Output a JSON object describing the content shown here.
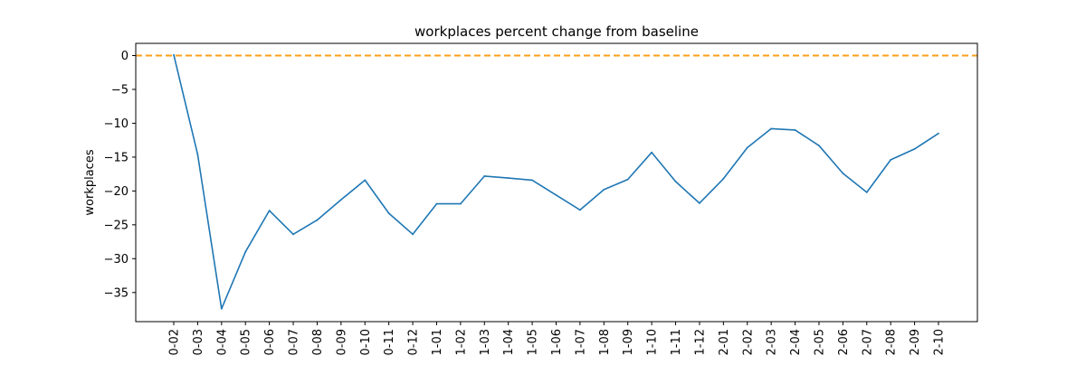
{
  "chart_data": {
    "type": "line",
    "title": "workplaces percent change from baseline",
    "xlabel": "",
    "ylabel": "workplaces",
    "categories": [
      "0-02",
      "0-03",
      "0-04",
      "0-05",
      "0-06",
      "0-07",
      "0-08",
      "0-09",
      "0-10",
      "0-11",
      "0-12",
      "1-01",
      "1-02",
      "1-03",
      "1-04",
      "1-05",
      "1-06",
      "1-07",
      "1-08",
      "1-09",
      "1-10",
      "1-11",
      "1-12",
      "2-01",
      "2-02",
      "2-03",
      "2-04",
      "2-05",
      "2-06",
      "2-07",
      "2-08",
      "2-09",
      "2-10"
    ],
    "series": [
      {
        "name": "",
        "color": "#1f77b4",
        "values": [
          0.1,
          -14.6,
          -37.4,
          -29.0,
          -22.9,
          -26.4,
          -24.3,
          -21.3,
          -18.4,
          -23.3,
          -26.4,
          -21.9,
          -21.9,
          -17.8,
          -18.1,
          -18.4,
          -20.6,
          -22.8,
          -19.8,
          -18.3,
          -14.3,
          -18.6,
          -21.8,
          -18.2,
          -13.6,
          -10.8,
          -11.0,
          -13.3,
          -17.4,
          -20.2,
          -15.4,
          -13.8,
          -11.5
        ]
      }
    ],
    "reference_line": {
      "y": 0,
      "color": "#ff9f1a",
      "style": "dashed"
    },
    "yticks": [
      0,
      -5,
      -10,
      -15,
      -20,
      -25,
      -30,
      -35
    ],
    "ylim": [
      -39.3,
      1.8
    ],
    "grid": false,
    "legend": false
  }
}
